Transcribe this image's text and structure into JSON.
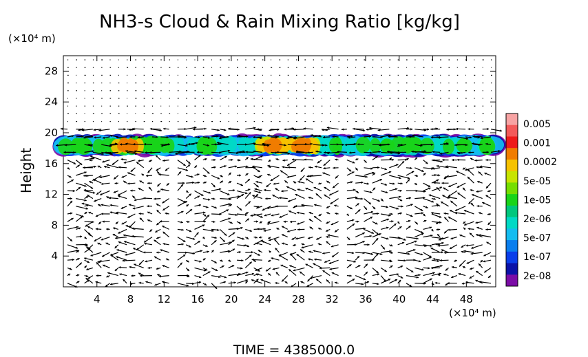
{
  "chart_data": {
    "type": "heatmap",
    "title": "NH3-s Cloud & Rain Mixing Ratio [kg/kg]",
    "ylabel": "Height",
    "xlabel": "",
    "x_unit": "(×10⁴ m)",
    "y_unit": "(×10⁴ m)",
    "xlim": [
      0,
      51.5
    ],
    "ylim": [
      0,
      30
    ],
    "x_ticks": [
      4,
      8,
      12,
      16,
      20,
      24,
      28,
      32,
      36,
      40,
      44,
      48
    ],
    "y_ticks": [
      4,
      8,
      12,
      16,
      20,
      24,
      28
    ],
    "colorbar": {
      "labels": [
        "0.005",
        "0.001",
        "0.0002",
        "5e-05",
        "1e-05",
        "2e-06",
        "5e-07",
        "1e-07",
        "2e-08"
      ],
      "colors": [
        "#f7a3a3",
        "#f35a5a",
        "#ee1a1a",
        "#f07c00",
        "#f6c200",
        "#c7e400",
        "#76de00",
        "#19d419",
        "#00c77d",
        "#00d9c5",
        "#14bcf0",
        "#0a7eee",
        "#0a3eea",
        "#0b12a8",
        "#7b0ca6"
      ]
    },
    "cloud_layer": {
      "base_height": 17,
      "top_height": 19.7,
      "x_range": [
        0,
        51.5
      ],
      "peak_x": [
        7.5,
        25,
        28.5
      ],
      "peak_value": "0.0002"
    },
    "grid": false,
    "legend": "right"
  },
  "footer": {
    "time_label": "TIME  =  4385000.0"
  }
}
